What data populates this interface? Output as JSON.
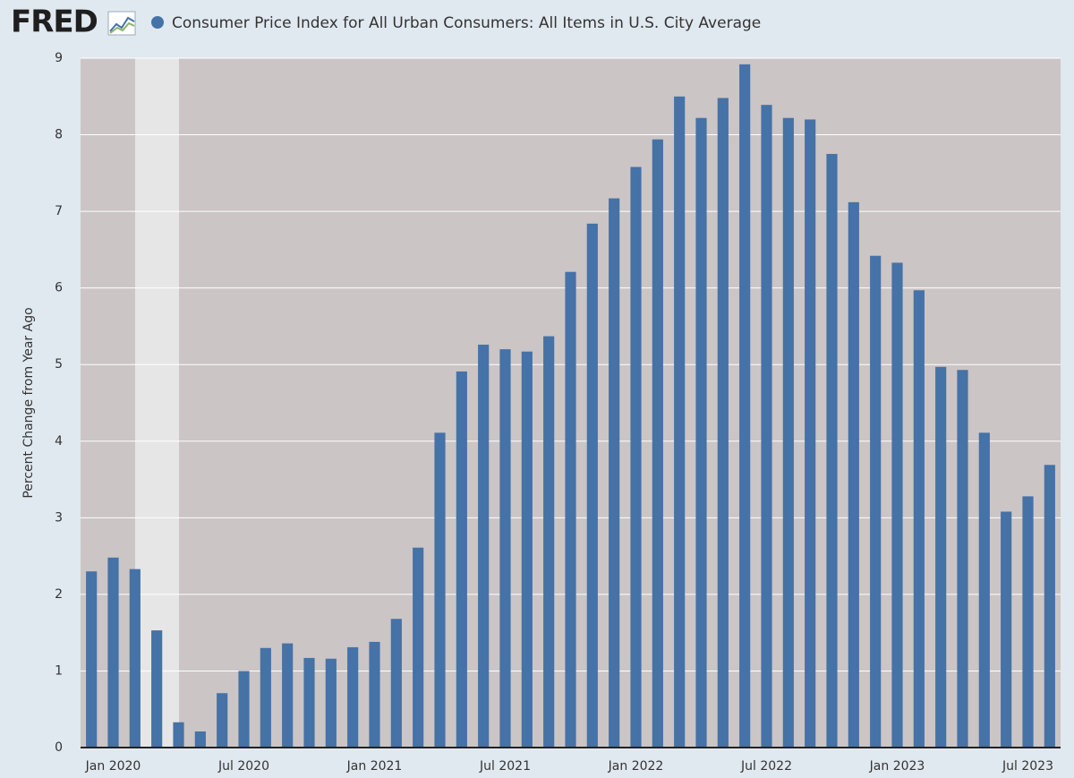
{
  "logo": "FRED",
  "chart_data": {
    "type": "bar",
    "y_label": "Percent Change from Year Ago",
    "categories": [
      null,
      "Jan 2020",
      null,
      null,
      null,
      null,
      null,
      "Jul 2020",
      null,
      null,
      null,
      null,
      null,
      "Jan 2021",
      null,
      null,
      null,
      null,
      null,
      "Jul 2021",
      null,
      null,
      null,
      null,
      null,
      "Jan 2022",
      null,
      null,
      null,
      null,
      null,
      "Jul 2022",
      null,
      null,
      null,
      null,
      null,
      "Jan 2023",
      null,
      null,
      null,
      null,
      null,
      "Jul 2023",
      null
    ],
    "series": [
      {
        "name": "Consumer Price Index for All Urban Consumers: All Items in U.S. City Average",
        "color": "#4572a7",
        "values": [
          2.3,
          2.48,
          2.33,
          1.53,
          0.33,
          0.21,
          0.71,
          1.0,
          1.3,
          1.36,
          1.17,
          1.16,
          1.31,
          1.38,
          1.68,
          2.61,
          4.11,
          4.91,
          5.26,
          5.2,
          5.17,
          5.37,
          6.21,
          6.84,
          7.17,
          7.58,
          7.94,
          8.5,
          8.22,
          8.48,
          8.92,
          8.39,
          8.22,
          8.2,
          7.75,
          7.12,
          6.42,
          6.33,
          5.97,
          4.97,
          4.93,
          4.11,
          3.08,
          3.28,
          3.69
        ]
      }
    ],
    "ylim": [
      0,
      9
    ],
    "yticks": [
      0,
      1,
      2,
      3,
      4,
      5,
      6,
      7,
      8,
      9
    ],
    "grid": true
  }
}
